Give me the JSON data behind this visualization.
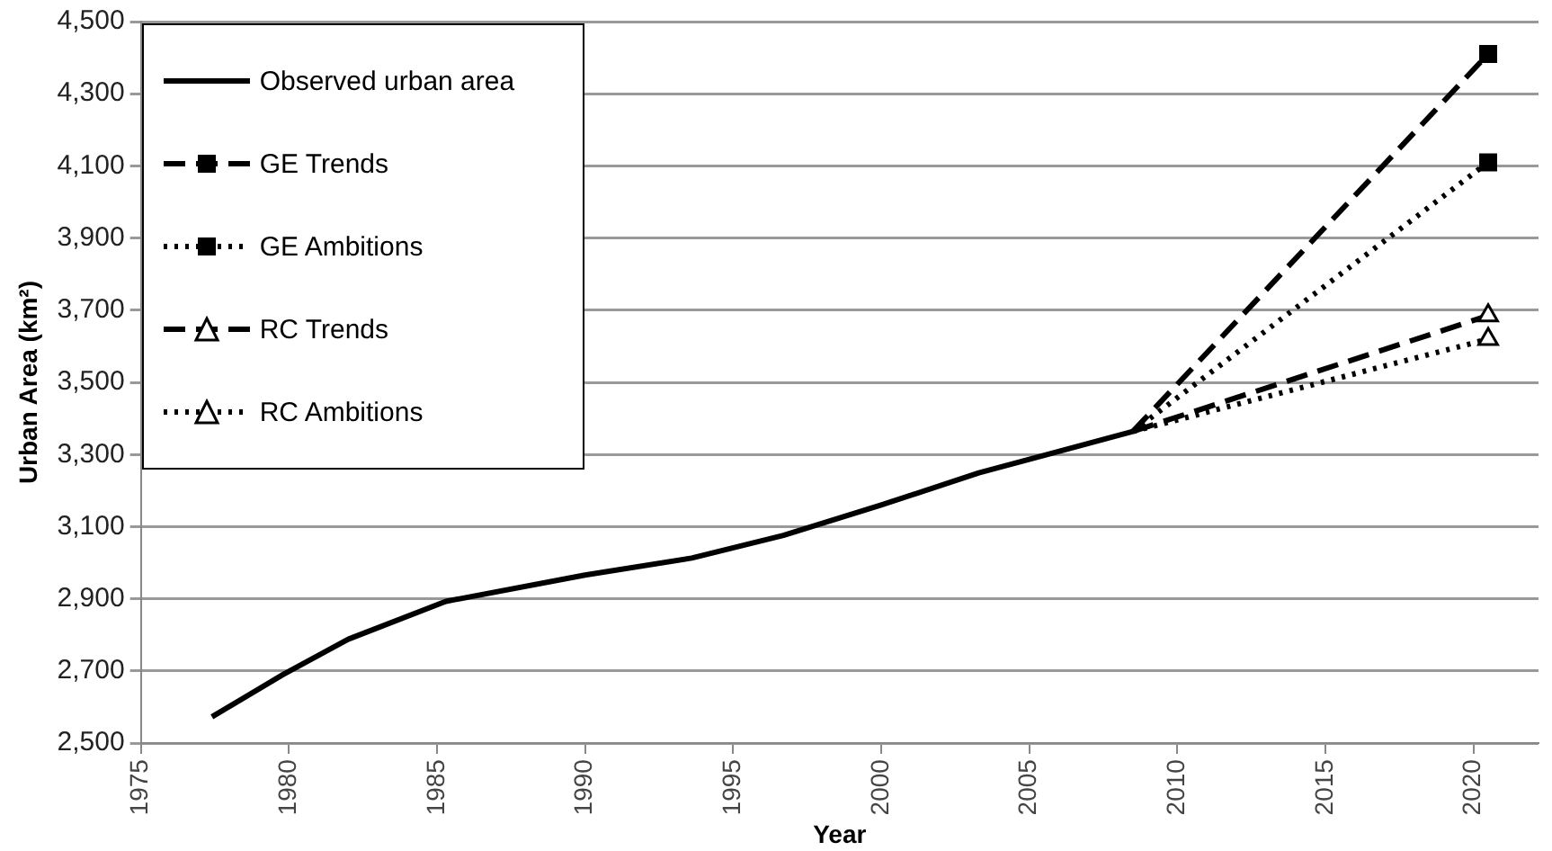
{
  "chart_data": {
    "type": "line",
    "xlabel": "Year",
    "ylabel": "Urban Area (km²)",
    "xlim": [
      1975,
      2022.2
    ],
    "xticks": [
      1975,
      1980,
      1985,
      1990,
      1995,
      2000,
      2005,
      2010,
      2015,
      2020
    ],
    "ylim": [
      2500,
      4500
    ],
    "yticks": [
      {
        "value": 2500,
        "label": "2,500"
      },
      {
        "value": 2700,
        "label": "2,700"
      },
      {
        "value": 2900,
        "label": "2,900"
      },
      {
        "value": 3100,
        "label": "3,100"
      },
      {
        "value": 3300,
        "label": "3,300"
      },
      {
        "value": 3500,
        "label": "3,500"
      },
      {
        "value": 3700,
        "label": "3,700"
      },
      {
        "value": 3900,
        "label": "3,900"
      },
      {
        "value": 4100,
        "label": "4,100"
      },
      {
        "value": 4300,
        "label": "4,300"
      },
      {
        "value": 4500,
        "label": "4,500"
      }
    ],
    "grid": "y",
    "legend": "top left",
    "series": [
      {
        "name": "Observed urban area",
        "color": "#000000",
        "marker": "none",
        "line_style": "solid",
        "x": [
          1977.4,
          1979.8,
          1982,
          1985.3,
          1990,
          1993.6,
          1996.7,
          2000,
          2003.3,
          2008.5
        ],
        "values": [
          2573,
          2690,
          2788,
          2893,
          2966,
          3013,
          3076,
          3160,
          3249,
          3364
        ]
      },
      {
        "name": "GE Trends",
        "color": "#000000",
        "marker": "square",
        "line_style": "dashed",
        "x": [
          2008.5,
          2020.5
        ],
        "values": [
          3364,
          4410
        ]
      },
      {
        "name": "GE Ambitions",
        "color": "#000000",
        "marker": "square",
        "line_style": "dotted",
        "x": [
          2008.5,
          2020.5
        ],
        "values": [
          3364,
          4110
        ]
      },
      {
        "name": "RC Trends",
        "color": "#000000",
        "marker": "triangle",
        "line_style": "dashed",
        "x": [
          2008.5,
          2020.5
        ],
        "values": [
          3364,
          3685
        ]
      },
      {
        "name": "RC Ambitions",
        "color": "#000000",
        "marker": "triangle",
        "line_style": "dotted",
        "x": [
          2008.5,
          2020.5
        ],
        "values": [
          3364,
          3620
        ]
      }
    ]
  }
}
